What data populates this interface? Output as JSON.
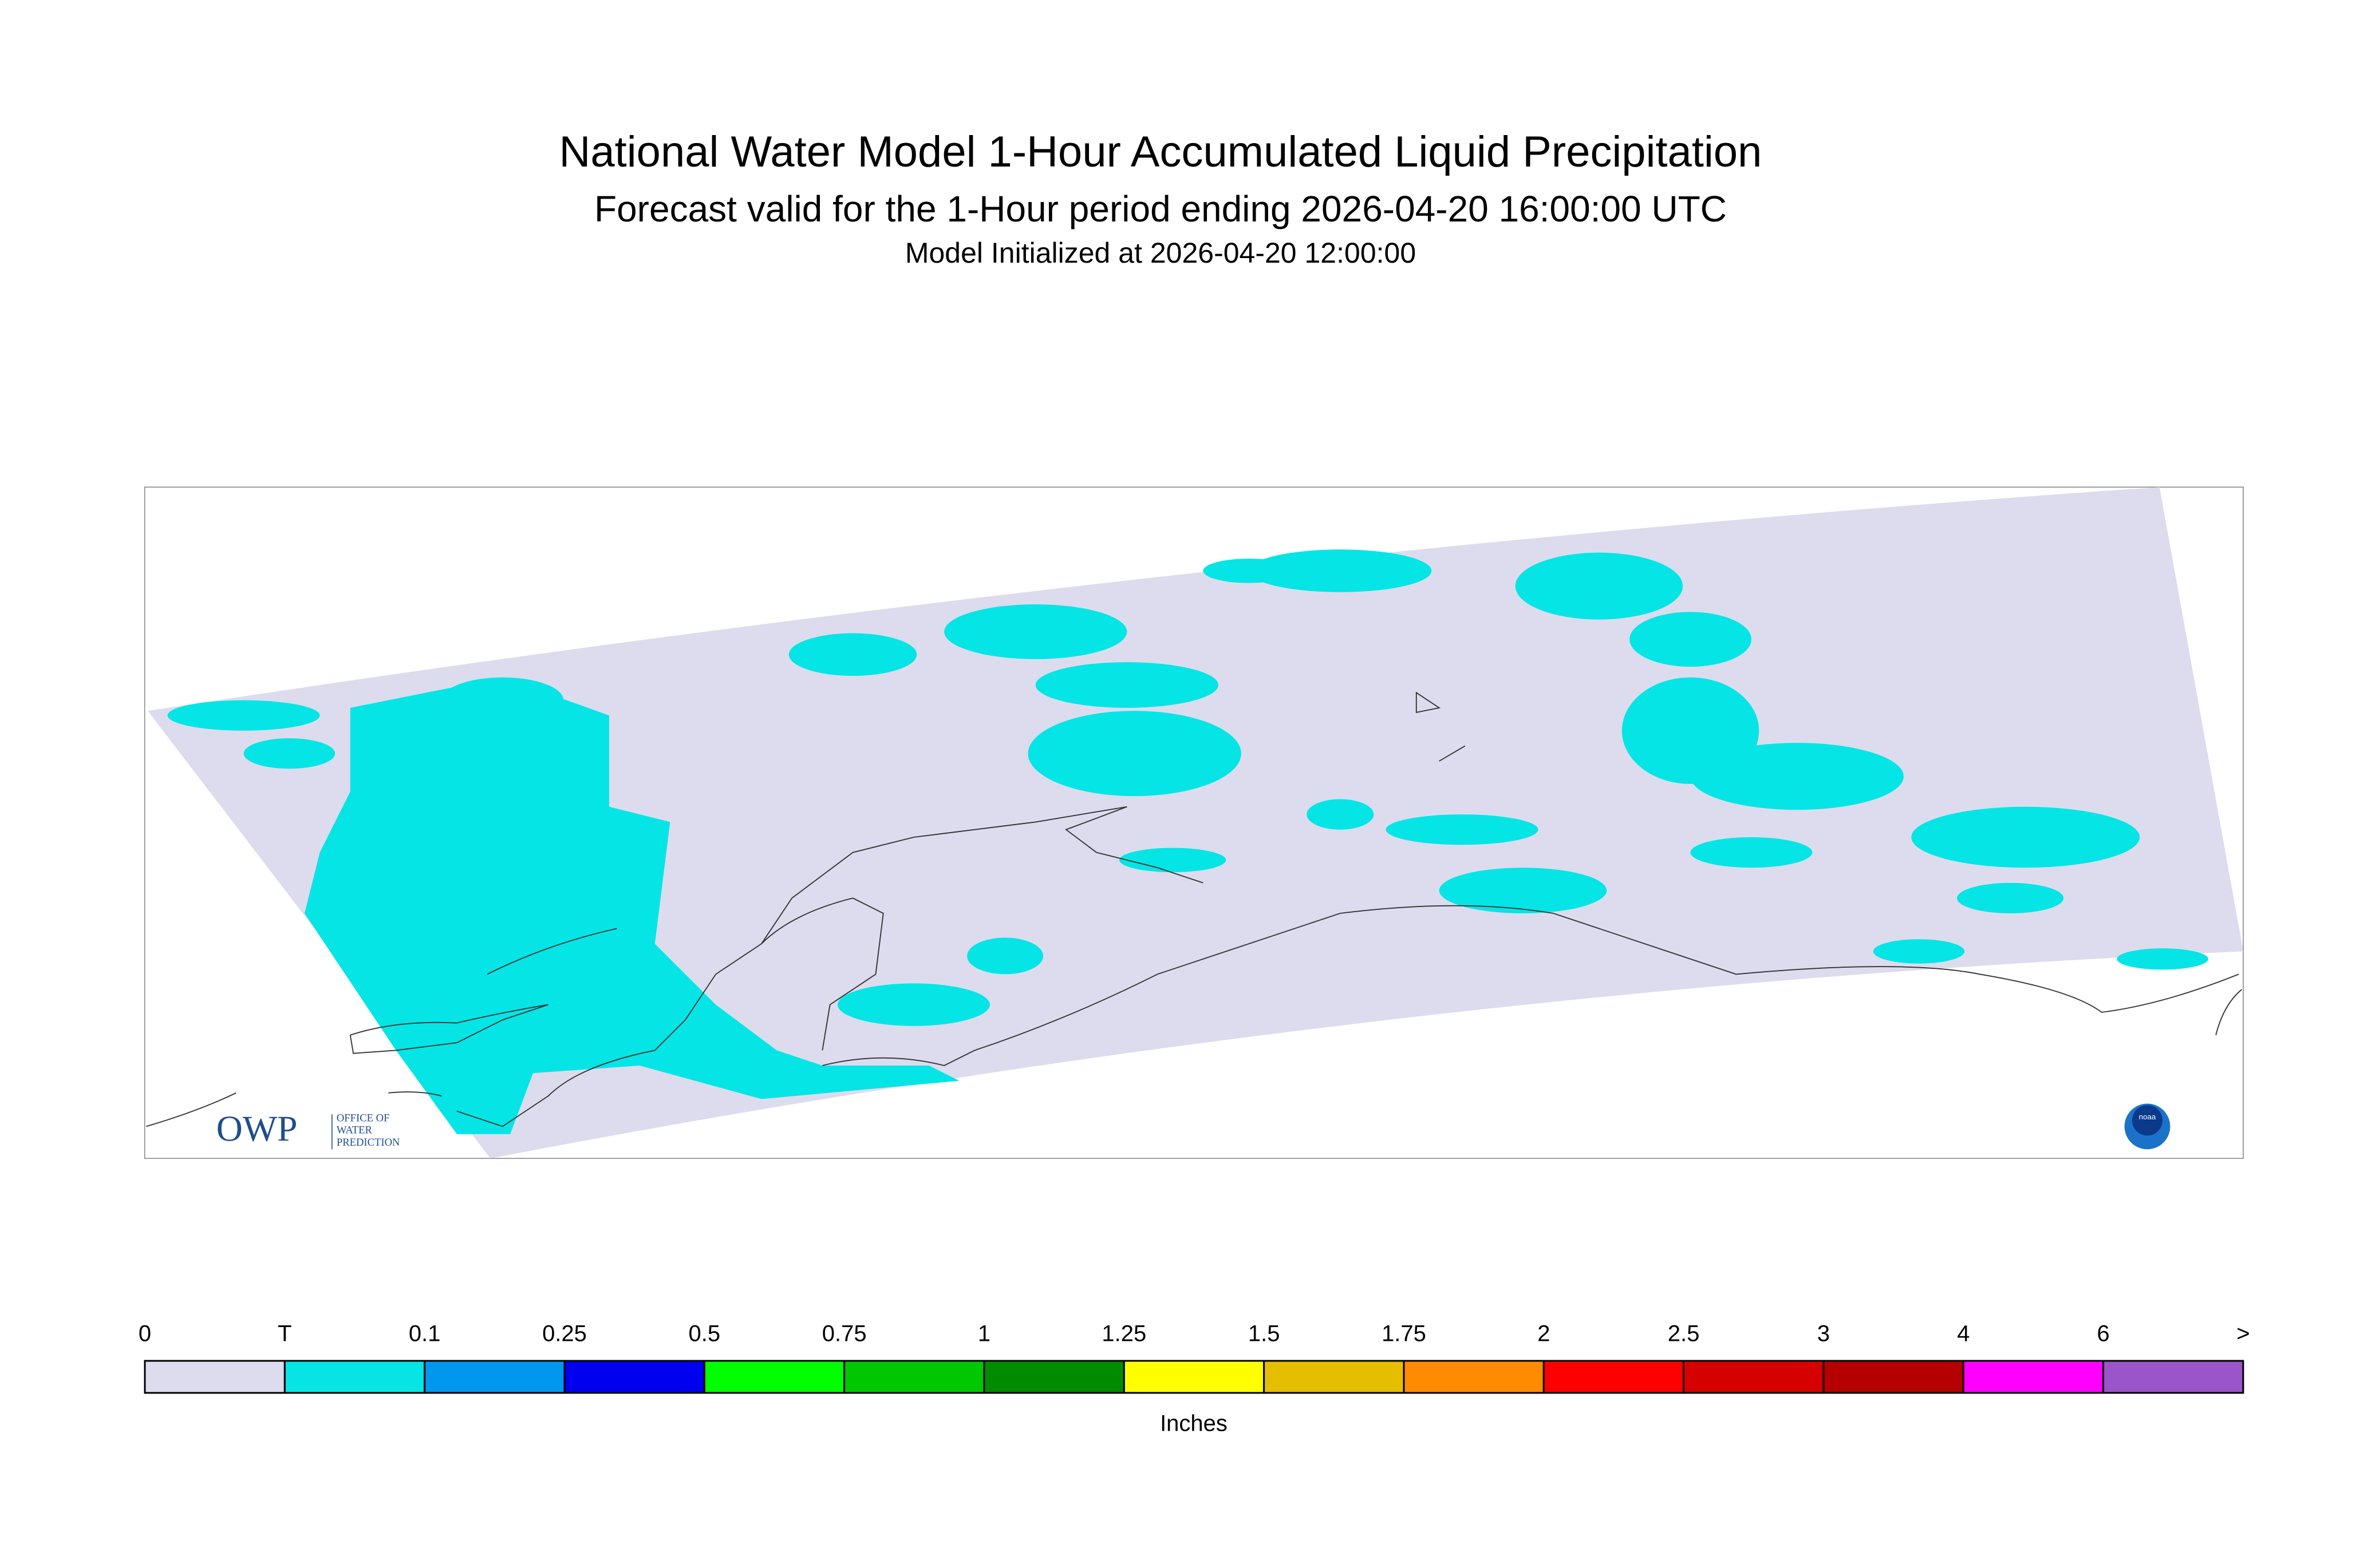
{
  "header": {
    "title": "National Water Model 1-Hour Accumulated Liquid Precipitation",
    "subtitle": "Forecast valid for the 1-Hour period ending 2026-04-20 16:00:00 UTC",
    "init": "Model Initialized at 2026-04-20 12:00:00"
  },
  "logo": {
    "owp": "OWP",
    "office": "OFFICE OF",
    "water": "WATER",
    "prediction": "PREDICTION",
    "noaa": "noaa"
  },
  "legend": {
    "labels": [
      "0",
      "T",
      "0.1",
      "0.25",
      "0.5",
      "0.75",
      "1",
      "1.25",
      "1.5",
      "1.75",
      "2",
      "2.5",
      "3",
      "4",
      "6",
      ">"
    ],
    "colors": [
      "#dcdcee",
      "#05e5e5",
      "#0098ee",
      "#0000f0",
      "#00ff00",
      "#00c800",
      "#008c00",
      "#ffff00",
      "#e6be00",
      "#ff8c00",
      "#ff0000",
      "#d70000",
      "#b40000",
      "#ff00ff",
      "#9955c9"
    ],
    "unit": "Inches"
  }
}
